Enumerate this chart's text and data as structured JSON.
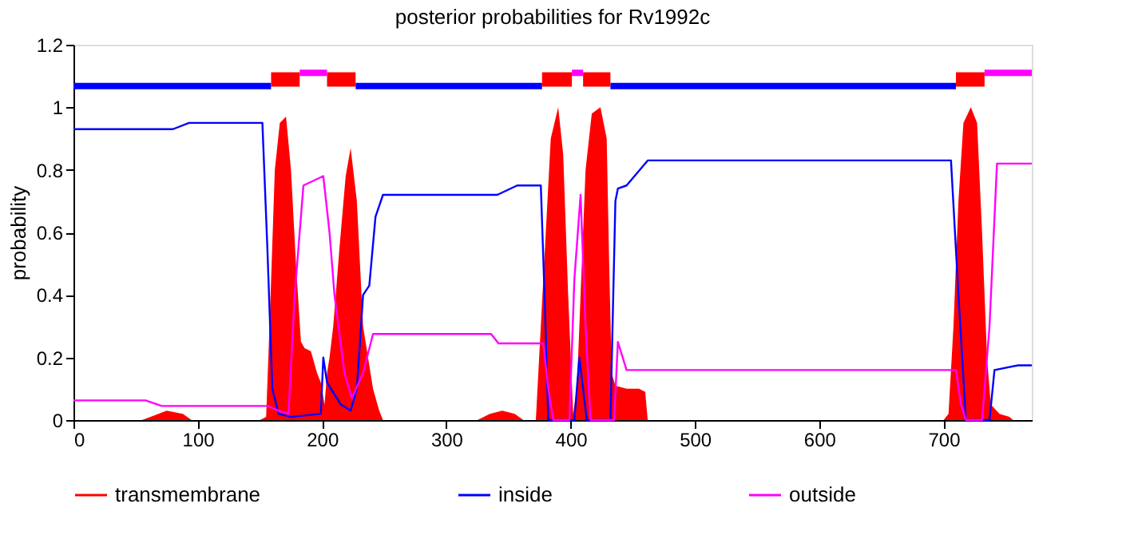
{
  "chart_data": {
    "type": "line",
    "title": "posterior probabilities for Rv1992c",
    "ylabel": "probability",
    "xlim": [
      0,
      771
    ],
    "xticks": [
      0,
      100,
      200,
      300,
      400,
      500,
      600,
      700
    ],
    "ylim": [
      0,
      1.2
    ],
    "yticks": [
      0,
      0.2,
      0.4,
      0.6,
      0.8,
      1,
      1.2
    ],
    "grid": false,
    "legend": "bottom",
    "marker": "none",
    "series": [
      {
        "name": "transmembrane",
        "type": "area",
        "color": "#ff0000",
        "x": [
          0,
          55,
          62,
          75,
          88,
          95,
          150,
          155,
          158,
          162,
          166,
          171,
          175,
          179,
          183,
          186,
          191,
          196,
          199,
          202,
          204,
          206,
          209,
          214,
          219,
          223,
          228,
          233,
          237,
          241,
          246,
          249,
          325,
          335,
          345,
          355,
          362,
          372,
          376,
          380,
          384,
          390,
          394,
          398,
          402,
          405,
          408,
          412,
          417,
          424,
          429,
          431,
          433,
          436,
          445,
          455,
          460,
          462,
          470,
          700,
          704,
          708,
          712,
          716,
          722,
          727,
          731,
          735,
          738,
          745,
          753,
          756,
          771
        ],
        "values": [
          0,
          0,
          0.01,
          0.03,
          0.02,
          0,
          0,
          0.01,
          0.33,
          0.8,
          0.95,
          0.97,
          0.8,
          0.5,
          0.25,
          0.23,
          0.22,
          0.15,
          0.12,
          0.05,
          0.15,
          0.2,
          0.3,
          0.55,
          0.78,
          0.87,
          0.7,
          0.3,
          0.2,
          0.1,
          0.03,
          0,
          0,
          0.02,
          0.03,
          0.02,
          0,
          0,
          0.3,
          0.6,
          0.9,
          1.0,
          0.85,
          0.4,
          0.02,
          0.1,
          0.4,
          0.8,
          0.98,
          1.0,
          0.9,
          0.5,
          0.15,
          0.11,
          0.1,
          0.1,
          0.09,
          0,
          0,
          0,
          0.02,
          0.3,
          0.7,
          0.95,
          1.0,
          0.95,
          0.6,
          0.2,
          0.05,
          0.02,
          0.01,
          0,
          0
        ]
      },
      {
        "name": "inside",
        "color": "#0000ff",
        "x": [
          0,
          80,
          93,
          152,
          156,
          160,
          165,
          175,
          199,
          201,
          204,
          215,
          223,
          228,
          233,
          238,
          243,
          249,
          341,
          357,
          376,
          379,
          382,
          403,
          407,
          413,
          432,
          436,
          438,
          445,
          462,
          706,
          712,
          718,
          737,
          741,
          760,
          771
        ],
        "values": [
          0.93,
          0.93,
          0.95,
          0.95,
          0.55,
          0.1,
          0.02,
          0.01,
          0.02,
          0.2,
          0.12,
          0.05,
          0.03,
          0.1,
          0.4,
          0.43,
          0.65,
          0.72,
          0.72,
          0.75,
          0.75,
          0.4,
          0.0,
          0.0,
          0.2,
          0.0,
          0.0,
          0.7,
          0.74,
          0.75,
          0.83,
          0.83,
          0.4,
          0.0,
          0.0,
          0.16,
          0.175,
          0.175
        ]
      },
      {
        "name": "outside",
        "color": "#ff00ff",
        "x": [
          0,
          58,
          71,
          156,
          165,
          173,
          178,
          185,
          201,
          206,
          210,
          218,
          224,
          233,
          241,
          336,
          342,
          378,
          382,
          386,
          399,
          403,
          408,
          412,
          416,
          435,
          438,
          445,
          710,
          714,
          718,
          731,
          737,
          743,
          771
        ],
        "values": [
          0.063,
          0.063,
          0.045,
          0.045,
          0.03,
          0.02,
          0.4,
          0.75,
          0.78,
          0.6,
          0.4,
          0.15,
          0.07,
          0.15,
          0.275,
          0.275,
          0.245,
          0.245,
          0.1,
          0.0,
          0.0,
          0.45,
          0.72,
          0.3,
          0.0,
          0.0,
          0.25,
          0.16,
          0.16,
          0.05,
          0.0,
          0.0,
          0.3,
          0.82,
          0.82
        ]
      },
      {
        "color": "#0000ff",
        "x": [
          0,
          159,
          160,
          227,
          377,
          378,
          432,
          710
        ],
        "values": [
          1.068,
          1.068,
          null,
          1.068,
          1.068,
          null,
          1.068,
          1.068
        ]
      },
      {
        "color": "#ff0000",
        "x": [
          159,
          182,
          183,
          204,
          227,
          228,
          377,
          401,
          402,
          410,
          432,
          433,
          710,
          733
        ],
        "values": [
          1.089,
          1.089,
          null,
          1.089,
          1.089,
          null,
          1.089,
          1.089,
          null,
          1.089,
          1.089,
          null,
          1.089,
          1.089
        ]
      },
      {
        "color": "#ff00ff",
        "x": [
          182,
          204,
          205,
          401,
          410,
          411,
          733,
          771
        ],
        "values": [
          1.11,
          1.11,
          null,
          1.11,
          1.11,
          null,
          1.11,
          1.11
        ]
      }
    ]
  }
}
